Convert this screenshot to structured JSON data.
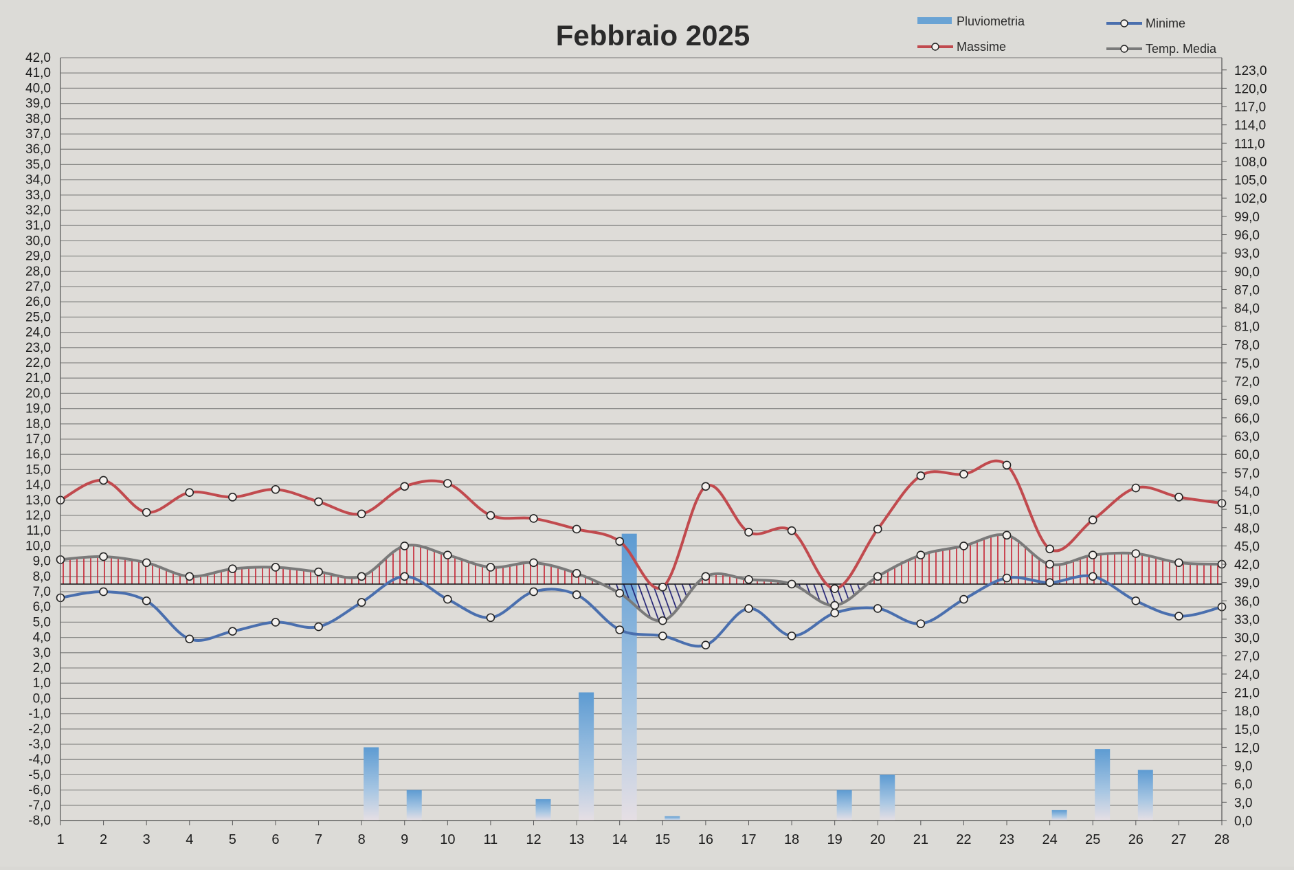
{
  "chart_data": {
    "type": "line",
    "title": "Febbraio 2025",
    "categories": [
      "1",
      "2",
      "3",
      "4",
      "5",
      "6",
      "7",
      "8",
      "9",
      "10",
      "11",
      "12",
      "13",
      "14",
      "15",
      "16",
      "17",
      "18",
      "19",
      "20",
      "21",
      "22",
      "23",
      "24",
      "25",
      "26",
      "27",
      "28"
    ],
    "y_left": {
      "range": [
        -8,
        42
      ],
      "ticks": [
        "42,0",
        "41,0",
        "40,0",
        "39,0",
        "38,0",
        "37,0",
        "36,0",
        "35,0",
        "34,0",
        "33,0",
        "32,0",
        "31,0",
        "30,0",
        "29,0",
        "28,0",
        "27,0",
        "26,0",
        "25,0",
        "24,0",
        "23,0",
        "22,0",
        "21,0",
        "20,0",
        "19,0",
        "18,0",
        "17,0",
        "16,0",
        "15,0",
        "14,0",
        "13,0",
        "12,0",
        "11,0",
        "10,0",
        "9,0",
        "8,0",
        "7,0",
        "6,0",
        "5,0",
        "4,0",
        "3,0",
        "2,0",
        "1,0",
        "0,0",
        "-1,0",
        "-2,0",
        "-3,0",
        "-4,0",
        "-5,0",
        "-6,0",
        "-7,0",
        "-8,0"
      ]
    },
    "y_right": {
      "range": [
        0,
        125
      ],
      "ticks": [
        "123,0",
        "120,0",
        "117,0",
        "114,0",
        "111,0",
        "108,0",
        "105,0",
        "102,0",
        "99,0",
        "96,0",
        "93,0",
        "90,0",
        "87,0",
        "84,0",
        "81,0",
        "78,0",
        "75,0",
        "72,0",
        "69,0",
        "66,0",
        "63,0",
        "60,0",
        "57,0",
        "54,0",
        "51,0",
        "48,0",
        "45,0",
        "42,0",
        "39,0",
        "36,0",
        "33,0",
        "30,0",
        "27,0",
        "24,0",
        "21,0",
        "18,0",
        "15,0",
        "12,0",
        "9,0",
        "6,0",
        "3,0",
        "0,0"
      ]
    },
    "reference_value": 7.5,
    "legend": [
      {
        "name": "Pluviometria",
        "color": "#6aa3d4",
        "kind": "bar"
      },
      {
        "name": "Minime",
        "color": "#4a6fae",
        "kind": "line"
      },
      {
        "name": "Massime",
        "color": "#c14a4e",
        "kind": "line"
      },
      {
        "name": "Temp. Media",
        "color": "#7a7a7a",
        "kind": "line"
      }
    ],
    "series": [
      {
        "name": "Massime",
        "color": "#c14a4e",
        "values": [
          13.0,
          14.3,
          12.2,
          13.5,
          13.2,
          13.7,
          12.9,
          12.1,
          13.9,
          14.1,
          12.0,
          11.8,
          11.1,
          10.3,
          7.3,
          13.9,
          10.9,
          11.0,
          7.2,
          11.1,
          14.6,
          14.7,
          15.3,
          9.8,
          11.7,
          13.8,
          13.2,
          12.8
        ]
      },
      {
        "name": "Minime",
        "color": "#4a6fae",
        "values": [
          6.6,
          7.0,
          6.4,
          3.9,
          4.4,
          5.0,
          4.7,
          6.3,
          8.0,
          6.5,
          5.3,
          7.0,
          6.8,
          4.5,
          4.1,
          3.5,
          5.9,
          4.1,
          5.6,
          5.9,
          4.9,
          6.5,
          7.9,
          7.6,
          8.0,
          6.4,
          5.4,
          6.0
        ]
      },
      {
        "name": "Temp. Media",
        "color": "#7a7a7a",
        "values": [
          9.1,
          9.3,
          8.9,
          8.0,
          8.5,
          8.6,
          8.3,
          8.0,
          10.0,
          9.4,
          8.6,
          8.9,
          8.2,
          6.9,
          5.1,
          8.0,
          7.8,
          7.5,
          6.1,
          8.0,
          9.4,
          10.0,
          10.7,
          8.8,
          9.4,
          9.5,
          8.9,
          8.8
        ]
      },
      {
        "name": "Pluviometria",
        "color": "#6aa3d4",
        "values": [
          0,
          0,
          0,
          0,
          0,
          0,
          0,
          12.0,
          5.0,
          0,
          0,
          3.5,
          21.0,
          47.0,
          0.7,
          0,
          0,
          0,
          5.0,
          7.5,
          0,
          0,
          0,
          1.7,
          11.7,
          8.3,
          0,
          0
        ]
      }
    ]
  }
}
